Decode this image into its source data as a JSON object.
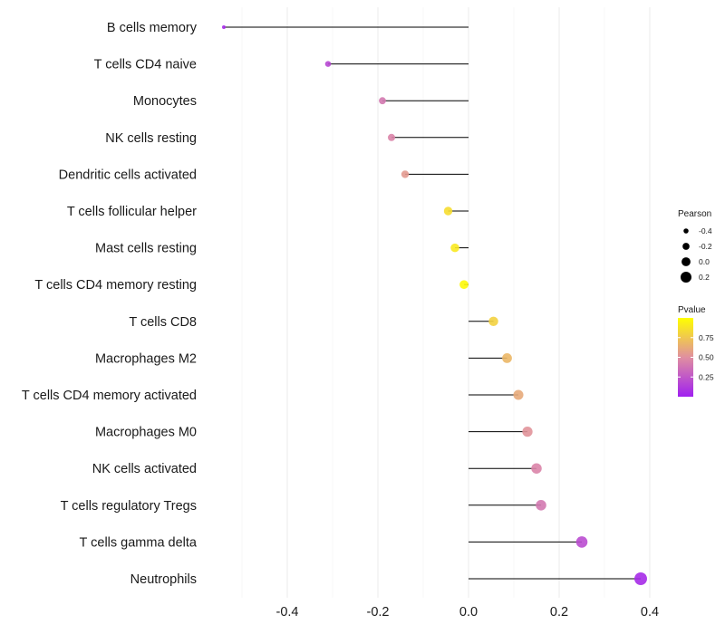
{
  "chart_data": {
    "type": "lollipop",
    "title": "",
    "xlabel": "",
    "ylabel": "",
    "xlim": [
      -0.6,
      0.4
    ],
    "xticks": [
      -0.4,
      -0.2,
      0.0,
      0.2,
      0.4
    ],
    "xtick_labels": [
      "-0.4",
      "-0.2",
      "0.0",
      "0.2",
      "0.4"
    ],
    "categories": [
      "B cells memory",
      "T cells CD4 naive",
      "Monocytes",
      "NK cells resting",
      "Dendritic cells activated",
      "T cells follicular helper",
      "Mast cells resting",
      "T cells CD4 memory resting",
      "T cells CD8",
      "Macrophages M2",
      "T cells CD4 memory activated",
      "Macrophages M0",
      "NK cells activated",
      "T cells regulatory  Tregs",
      "T cells gamma delta",
      "Neutrophils"
    ],
    "pearson": [
      -0.54,
      -0.31,
      -0.19,
      -0.17,
      -0.14,
      -0.045,
      -0.03,
      -0.01,
      0.055,
      0.085,
      0.11,
      0.13,
      0.15,
      0.16,
      0.25,
      0.38
    ],
    "pvalue": [
      0.05,
      0.18,
      0.4,
      0.45,
      0.55,
      0.85,
      0.9,
      0.97,
      0.8,
      0.68,
      0.62,
      0.52,
      0.45,
      0.4,
      0.2,
      0.05
    ],
    "legend": {
      "size_title": "Pearson",
      "size_labels": [
        "-0.4",
        "-0.2",
        "0.0",
        "0.2"
      ],
      "size_values": [
        -0.4,
        -0.2,
        0.0,
        0.2
      ],
      "color_title": "Pvalue",
      "color_labels": [
        "0.75",
        "0.50",
        "0.25"
      ],
      "color_values": [
        0.75,
        0.5,
        0.25
      ],
      "color_range": [
        0.0,
        1.0
      ],
      "placement": "right"
    },
    "colors": {
      "low": "#A020F0",
      "mid": "#E08FA0",
      "high": "#FFFF00",
      "stem": "#000000",
      "grid": "#EBEBEB"
    }
  }
}
